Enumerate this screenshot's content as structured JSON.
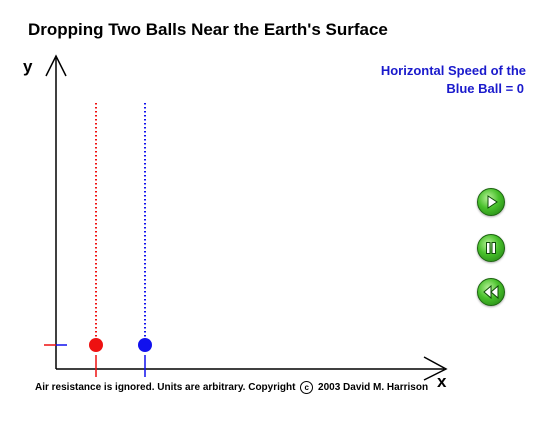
{
  "title": "Dropping Two Balls Near the Earth's Surface",
  "speed_readout": {
    "line1": "Horizontal Speed of the",
    "line2": "Blue Ball  =  0"
  },
  "axes": {
    "x_label": "x",
    "y_label": "y"
  },
  "footer": {
    "text_before": "Air resistance is ignored. Units are arbitrary. Copyright",
    "copyright_symbol": "c",
    "text_after": "2003 David M. Harrison"
  },
  "controls": {
    "play": "play-icon",
    "pause": "pause-icon",
    "rewind": "rewind-icon"
  },
  "colors": {
    "red_ball": "#ee1111",
    "blue_ball": "#1111ee",
    "speed_text": "#1a1acc",
    "button_green": "#48c02b"
  }
}
